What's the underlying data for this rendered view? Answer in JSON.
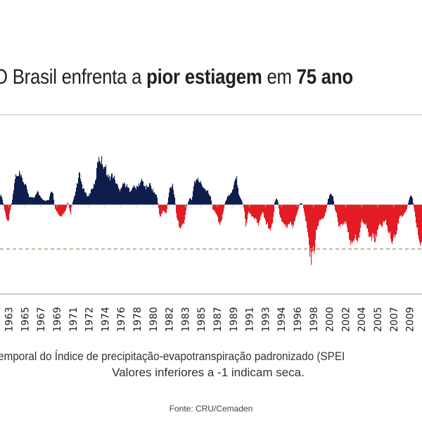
{
  "title": {
    "part1": "O Brasil enfrenta a ",
    "bold1": "pior estiagem",
    "part2": " em ",
    "bold2": "75 ano"
  },
  "caption": {
    "line1": "emporal do Índice de precipitação-evapotranspiração padronizado (SPEI",
    "line2": "Valores inferiores a  -1 indicam seca."
  },
  "source": "Fonte: CRU/Cemaden",
  "chart_data": {
    "type": "bar",
    "xlabel": "",
    "ylabel": "",
    "x_tick_labels": [
      "1963",
      "1965",
      "1967",
      "1969",
      "1971",
      "1972",
      "1974",
      "1976",
      "1978",
      "1980",
      "1982",
      "1983",
      "1985",
      "1987",
      "1989",
      "1991",
      "1993",
      "1994",
      "1996",
      "1998",
      "2000",
      "2002",
      "2004",
      "2005",
      "2007",
      "2009"
    ],
    "xlim": [
      1962.0,
      2010.4
    ],
    "ylim": [
      -2.0,
      2.0
    ],
    "threshold": {
      "value": -1,
      "style": "dashed"
    },
    "colors": {
      "positive": "#0f1d4d",
      "negative": "#e31b23",
      "threshold": "#b89a78",
      "axis": "#cccccc"
    },
    "points": [
      [
        1962.0,
        0.23
      ],
      [
        1962.2,
        0.2
      ],
      [
        1962.5,
        -0.1
      ],
      [
        1962.9,
        -0.46
      ],
      [
        1963.2,
        -0.1
      ],
      [
        1963.4,
        0.1
      ],
      [
        1963.8,
        0.68
      ],
      [
        1964.0,
        0.6
      ],
      [
        1964.2,
        0.7
      ],
      [
        1964.6,
        0.57
      ],
      [
        1965.0,
        0.41
      ],
      [
        1965.4,
        0.17
      ],
      [
        1965.9,
        0.17
      ],
      [
        1966.3,
        0.33
      ],
      [
        1966.7,
        0.15
      ],
      [
        1967.1,
        0.1
      ],
      [
        1967.6,
        0.1
      ],
      [
        1967.8,
        0.28
      ],
      [
        1968.1,
        0.25
      ],
      [
        1968.3,
        -0.1
      ],
      [
        1969.0,
        -0.28
      ],
      [
        1969.5,
        -0.15
      ],
      [
        1969.8,
        0.05
      ],
      [
        1970.1,
        -0.22
      ],
      [
        1970.2,
        -0.05
      ],
      [
        1970.4,
        0.1
      ],
      [
        1970.6,
        0.23
      ],
      [
        1971.1,
        0.7
      ],
      [
        1971.5,
        0.39
      ],
      [
        1971.9,
        0.23
      ],
      [
        1972.2,
        0.2
      ],
      [
        1972.5,
        0.36
      ],
      [
        1972.9,
        0.47
      ],
      [
        1973.3,
        1.13
      ],
      [
        1973.7,
        1.0
      ],
      [
        1974.1,
        0.86
      ],
      [
        1974.5,
        0.6
      ],
      [
        1974.9,
        0.7
      ],
      [
        1975.3,
        0.52
      ],
      [
        1975.7,
        0.33
      ],
      [
        1976.1,
        0.5
      ],
      [
        1976.5,
        0.44
      ],
      [
        1976.9,
        0.33
      ],
      [
        1977.3,
        0.41
      ],
      [
        1977.7,
        0.39
      ],
      [
        1978.3,
        0.57
      ],
      [
        1978.7,
        0.39
      ],
      [
        1979.2,
        0.47
      ],
      [
        1979.6,
        0.31
      ],
      [
        1980.0,
        0.2
      ],
      [
        1980.2,
        -0.1
      ],
      [
        1980.3,
        -0.3
      ],
      [
        1980.7,
        -0.14
      ],
      [
        1981.1,
        -0.2
      ],
      [
        1981.3,
        0.15
      ],
      [
        1981.5,
        0.39
      ],
      [
        1981.8,
        0.47
      ],
      [
        1982.1,
        0.1
      ],
      [
        1982.2,
        -0.2
      ],
      [
        1982.4,
        -0.41
      ],
      [
        1982.8,
        -0.54
      ],
      [
        1983.2,
        -0.35
      ],
      [
        1983.4,
        -0.05
      ],
      [
        1983.8,
        0.17
      ],
      [
        1984.0,
        0.1
      ],
      [
        1984.2,
        0.4
      ],
      [
        1984.3,
        0.54
      ],
      [
        1984.8,
        0.57
      ],
      [
        1985.4,
        0.39
      ],
      [
        1985.9,
        0.31
      ],
      [
        1986.2,
        0.15
      ],
      [
        1986.4,
        -0.1
      ],
      [
        1986.8,
        -0.2
      ],
      [
        1987.2,
        -0.49
      ],
      [
        1987.6,
        -0.2
      ],
      [
        1987.8,
        0.05
      ],
      [
        1988.1,
        0.19
      ],
      [
        1988.6,
        0.27
      ],
      [
        1988.9,
        0.49
      ],
      [
        1989.1,
        0.7
      ],
      [
        1989.4,
        0.25
      ],
      [
        1989.8,
        0.05
      ],
      [
        1990.0,
        -0.1
      ],
      [
        1990.2,
        -0.54
      ],
      [
        1990.5,
        -0.15
      ],
      [
        1990.9,
        -0.28
      ],
      [
        1991.3,
        -0.33
      ],
      [
        1991.7,
        -0.46
      ],
      [
        1992.1,
        -0.14
      ],
      [
        1992.5,
        -0.41
      ],
      [
        1993.1,
        -0.57
      ],
      [
        1993.4,
        -0.2
      ],
      [
        1993.5,
        0.05
      ],
      [
        1993.7,
        0.17
      ],
      [
        1993.9,
        0.05
      ],
      [
        1994.1,
        -0.3
      ],
      [
        1994.4,
        -0.38
      ],
      [
        1994.8,
        -0.52
      ],
      [
        1995.2,
        -0.41
      ],
      [
        1995.6,
        -0.49
      ],
      [
        1996.0,
        -0.25
      ],
      [
        1996.4,
        0.03
      ],
      [
        1996.7,
        0.03
      ],
      [
        1996.9,
        -0.2
      ],
      [
        1997.3,
        -0.62
      ],
      [
        1997.5,
        -1.1
      ],
      [
        1997.7,
        -1.25
      ],
      [
        1998.1,
        -0.99
      ],
      [
        1998.3,
        -0.57
      ],
      [
        1998.7,
        -0.35
      ],
      [
        1999.1,
        -0.3
      ],
      [
        1999.4,
        -0.15
      ],
      [
        1999.6,
        0.1
      ],
      [
        1999.9,
        0.28
      ],
      [
        2000.2,
        0.2
      ],
      [
        2000.4,
        -0.1
      ],
      [
        2000.6,
        -0.2
      ],
      [
        2000.9,
        -0.54
      ],
      [
        2001.3,
        -0.46
      ],
      [
        2001.7,
        -0.41
      ],
      [
        2002.0,
        -0.67
      ],
      [
        2002.3,
        -0.97
      ],
      [
        2002.7,
        -0.73
      ],
      [
        2003.1,
        -0.78
      ],
      [
        2003.5,
        -0.38
      ],
      [
        2004.0,
        -0.44
      ],
      [
        2004.4,
        -0.78
      ],
      [
        2004.8,
        -0.73
      ],
      [
        2005.0,
        -0.8
      ],
      [
        2005.4,
        -0.52
      ],
      [
        2005.8,
        -0.46
      ],
      [
        2006.2,
        -0.35
      ],
      [
        2006.6,
        -0.62
      ],
      [
        2007.0,
        -0.91
      ],
      [
        2007.4,
        -0.67
      ],
      [
        2007.8,
        -0.3
      ],
      [
        2008.2,
        -0.25
      ],
      [
        2008.6,
        -0.14
      ],
      [
        2008.9,
        0.1
      ],
      [
        2009.1,
        0.25
      ],
      [
        2009.3,
        0.15
      ],
      [
        2009.5,
        -0.1
      ],
      [
        2009.7,
        -0.41
      ],
      [
        2010.1,
        -0.78
      ],
      [
        2010.3,
        -0.94
      ],
      [
        2010.4,
        -0.9
      ]
    ]
  }
}
